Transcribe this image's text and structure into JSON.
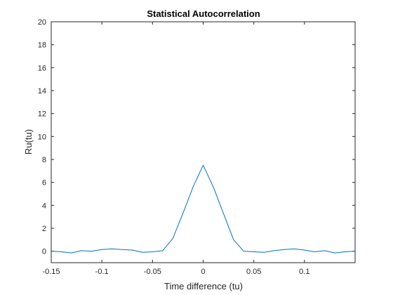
{
  "chart_data": {
    "type": "line",
    "title": "Statistical Autocorrelation",
    "xlabel": "Time difference (tu)",
    "ylabel": "Ru(tu)",
    "xlim": [
      -0.15,
      0.15
    ],
    "ylim": [
      -1,
      20
    ],
    "x_ticks": [
      -0.15,
      -0.1,
      -0.05,
      0,
      0.05,
      0.1
    ],
    "x_tick_labels": [
      "-0.15",
      "-0.1",
      "-0.05",
      "0",
      "0.05",
      "0.1"
    ],
    "y_ticks": [
      0,
      2,
      4,
      6,
      8,
      10,
      12,
      14,
      16,
      18,
      20
    ],
    "y_tick_labels": [
      "0",
      "2",
      "4",
      "6",
      "8",
      "10",
      "12",
      "14",
      "16",
      "18",
      "20"
    ],
    "grid": false,
    "legend": "none",
    "series": [
      {
        "color": "#0072BD",
        "x": [
          -0.15,
          -0.14,
          -0.13,
          -0.12,
          -0.11,
          -0.1,
          -0.09,
          -0.08,
          -0.07,
          -0.06,
          -0.05,
          -0.04,
          -0.03,
          -0.02,
          -0.01,
          0,
          0.01,
          0.02,
          0.03,
          0.04,
          0.05,
          0.06,
          0.07,
          0.08,
          0.09,
          0.1,
          0.11,
          0.12,
          0.13,
          0.14,
          0.15
        ],
        "y": [
          0.0,
          -0.05,
          -0.15,
          0.05,
          0.0,
          0.15,
          0.2,
          0.15,
          0.1,
          -0.1,
          -0.05,
          0.05,
          1.1,
          3.3,
          5.6,
          7.5,
          5.6,
          3.3,
          1.0,
          0.0,
          -0.05,
          -0.1,
          0.05,
          0.15,
          0.2,
          0.1,
          -0.05,
          0.05,
          -0.15,
          -0.05,
          0.0
        ]
      }
    ]
  }
}
